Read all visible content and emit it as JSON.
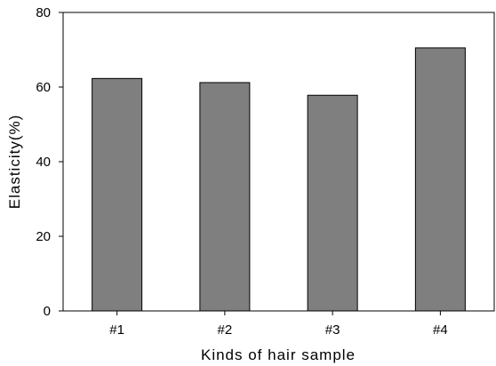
{
  "chart_data": {
    "type": "bar",
    "title": "",
    "xlabel": "Kinds of hair sample",
    "ylabel": "Elasticity(%)",
    "categories": [
      "#1",
      "#2",
      "#3",
      "#4"
    ],
    "values": [
      62.3,
      61.2,
      57.8,
      70.5
    ],
    "ylim": [
      0,
      80
    ],
    "yticks": [
      0,
      20,
      40,
      60,
      80
    ],
    "grid": false,
    "legend": "none",
    "bar_color": "#7f7f7f",
    "bar_edge_color": "#000000"
  }
}
